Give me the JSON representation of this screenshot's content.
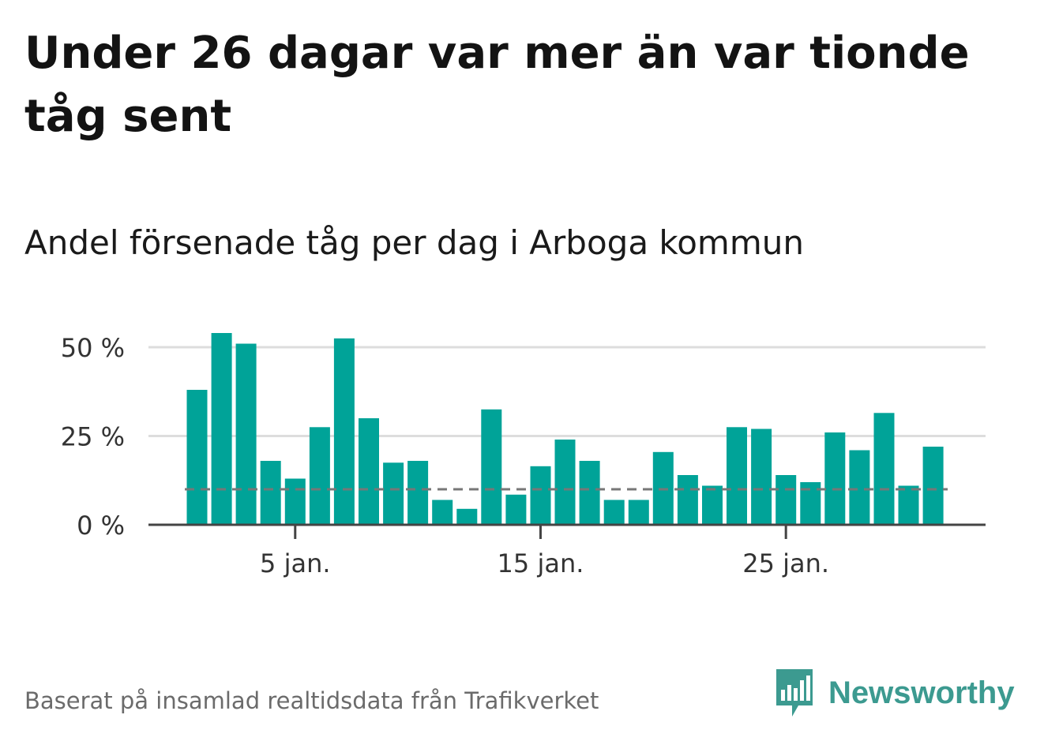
{
  "header": {
    "title": "Under 26 dagar var mer än var tionde tåg sent",
    "subtitle": "Andel försenade tåg per dag i Arboga kommun"
  },
  "footer": {
    "source": "Baserat på insamlad realtidsdata från Trafikverket",
    "brand": "Newsworthy",
    "brand_icon": "newsworthy-logo-icon"
  },
  "colors": {
    "bar": "#00a398",
    "grid": "#dddddd",
    "axis": "#444444",
    "reference_line": "#777777",
    "brand": "#3c9a90"
  },
  "chart_data": {
    "type": "bar",
    "title": "Andel försenade tåg per dag i Arboga kommun",
    "xlabel": "",
    "ylabel": "",
    "x": [
      "1 jan.",
      "2 jan.",
      "3 jan.",
      "4 jan.",
      "5 jan.",
      "6 jan.",
      "7 jan.",
      "8 jan.",
      "9 jan.",
      "10 jan.",
      "11 jan.",
      "12 jan.",
      "13 jan.",
      "14 jan.",
      "15 jan.",
      "16 jan.",
      "17 jan.",
      "18 jan.",
      "19 jan.",
      "20 jan.",
      "21 jan.",
      "22 jan.",
      "23 jan.",
      "24 jan.",
      "25 jan.",
      "26 jan.",
      "27 jan.",
      "28 jan.",
      "29 jan.",
      "30 jan.",
      "31 jan."
    ],
    "values": [
      38,
      54,
      51,
      18,
      13,
      27.5,
      52.5,
      30,
      17.5,
      18,
      7,
      4.5,
      32.5,
      8.5,
      16.5,
      24,
      18,
      7,
      7,
      20.5,
      14,
      11,
      27.5,
      27,
      14,
      12,
      26,
      21,
      31.5,
      11,
      22
    ],
    "reference_line": 10,
    "ylim": [
      0,
      55
    ],
    "yticks": [
      0,
      25,
      50
    ],
    "ytick_labels": [
      "0 %",
      "25 %",
      "50 %"
    ],
    "xticks": [
      "5 jan.",
      "15 jan.",
      "25 jan."
    ],
    "grid": true,
    "legend": "none"
  }
}
